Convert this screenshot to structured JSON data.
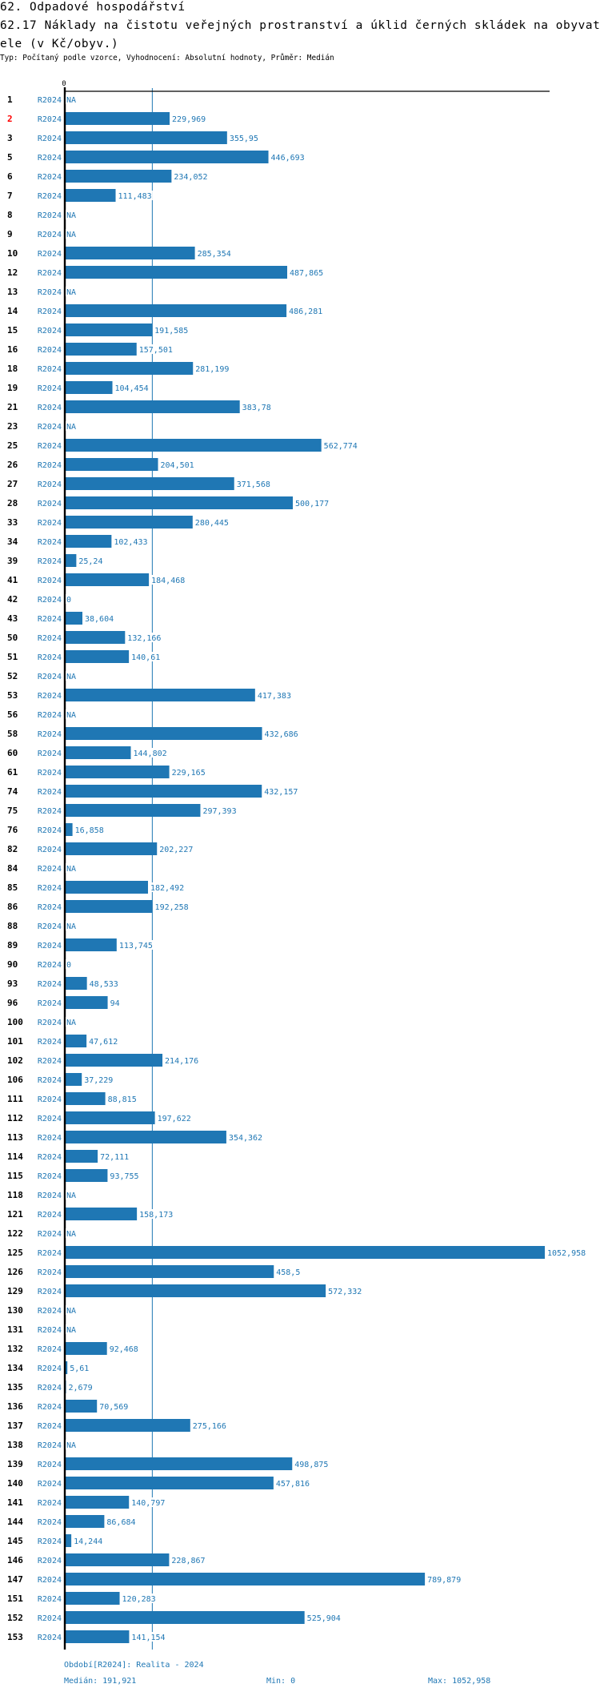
{
  "header": {
    "section": "62. Odpadové hospodářství",
    "title_line1": "62.17 Náklady na čistotu veřejných prostranství a úklid černých skládek na obyvat",
    "title_line2": "ele (v Kč/obyv.)",
    "subtitle": "Typ: Počítaný podle vzorce, Vyhodnocení: Absolutní hodnoty, Průměr: Medián"
  },
  "colors": {
    "bar": "#1f77b4",
    "text_blue": "#1f77b4",
    "highlight": "#ff0000",
    "axis": "#000000"
  },
  "chart_data": {
    "type": "bar",
    "orientation": "horizontal",
    "title": "62.17 Náklady na čistotu veřejných prostranství a úklid černých skládek na obyvatele (v Kč/obyv.)",
    "xlabel": "",
    "ylabel": "",
    "x_tick_labels": [
      "0"
    ],
    "xlim": [
      0,
      1052.958
    ],
    "series_label": "R2024",
    "highlighted_category": "2",
    "median": 191.921,
    "categories": [
      "1",
      "2",
      "3",
      "5",
      "6",
      "7",
      "8",
      "9",
      "10",
      "12",
      "13",
      "14",
      "15",
      "16",
      "18",
      "19",
      "21",
      "23",
      "25",
      "26",
      "27",
      "28",
      "33",
      "34",
      "39",
      "41",
      "42",
      "43",
      "50",
      "51",
      "52",
      "53",
      "56",
      "58",
      "60",
      "61",
      "74",
      "75",
      "76",
      "82",
      "84",
      "85",
      "86",
      "88",
      "89",
      "90",
      "93",
      "96",
      "100",
      "101",
      "102",
      "106",
      "111",
      "112",
      "113",
      "114",
      "115",
      "118",
      "121",
      "122",
      "125",
      "126",
      "129",
      "130",
      "131",
      "132",
      "134",
      "135",
      "136",
      "137",
      "138",
      "139",
      "140",
      "141",
      "144",
      "145",
      "146",
      "147",
      "151",
      "152",
      "153"
    ],
    "values": [
      null,
      229.969,
      355.95,
      446.693,
      234.052,
      111.483,
      null,
      null,
      285.354,
      487.865,
      null,
      486.281,
      191.585,
      157.501,
      281.199,
      104.454,
      383.78,
      null,
      562.774,
      204.501,
      371.568,
      500.177,
      280.445,
      102.433,
      25.24,
      184.468,
      0,
      38.604,
      132.166,
      140.61,
      null,
      417.383,
      null,
      432.686,
      144.802,
      229.165,
      432.157,
      297.393,
      16.858,
      202.227,
      null,
      182.492,
      192.258,
      null,
      113.745,
      0,
      48.533,
      94,
      null,
      47.612,
      214.176,
      37.229,
      88.815,
      197.622,
      354.362,
      72.111,
      93.755,
      null,
      158.173,
      null,
      1052.958,
      458.5,
      572.332,
      null,
      null,
      92.468,
      5.61,
      2.679,
      70.569,
      275.166,
      null,
      498.875,
      457.816,
      140.797,
      86.684,
      14.244,
      228.867,
      789.879,
      120.283,
      525.904,
      141.154
    ],
    "value_labels": [
      "NA",
      "229,969",
      "355,95",
      "446,693",
      "234,052",
      "111,483",
      "NA",
      "NA",
      "285,354",
      "487,865",
      "NA",
      "486,281",
      "191,585",
      "157,501",
      "281,199",
      "104,454",
      "383,78",
      "NA",
      "562,774",
      "204,501",
      "371,568",
      "500,177",
      "280,445",
      "102,433",
      "25,24",
      "184,468",
      "0",
      "38,604",
      "132,166",
      "140,61",
      "NA",
      "417,383",
      "NA",
      "432,686",
      "144,802",
      "229,165",
      "432,157",
      "297,393",
      "16,858",
      "202,227",
      "NA",
      "182,492",
      "192,258",
      "NA",
      "113,745",
      "0",
      "48,533",
      "94",
      "NA",
      "47,612",
      "214,176",
      "37,229",
      "88,815",
      "197,622",
      "354,362",
      "72,111",
      "93,755",
      "NA",
      "158,173",
      "NA",
      "1052,958",
      "458,5",
      "572,332",
      "NA",
      "NA",
      "92,468",
      "5,61",
      "2,679",
      "70,569",
      "275,166",
      "NA",
      "498,875",
      "457,816",
      "140,797",
      "86,684",
      "14,244",
      "228,867",
      "789,879",
      "120,283",
      "525,904",
      "141,154"
    ]
  },
  "footer": {
    "period": "Období[R2024]: Realita - 2024",
    "median": "Medián: 191,921",
    "min": "Min: 0",
    "max": "Max: 1052,958"
  }
}
